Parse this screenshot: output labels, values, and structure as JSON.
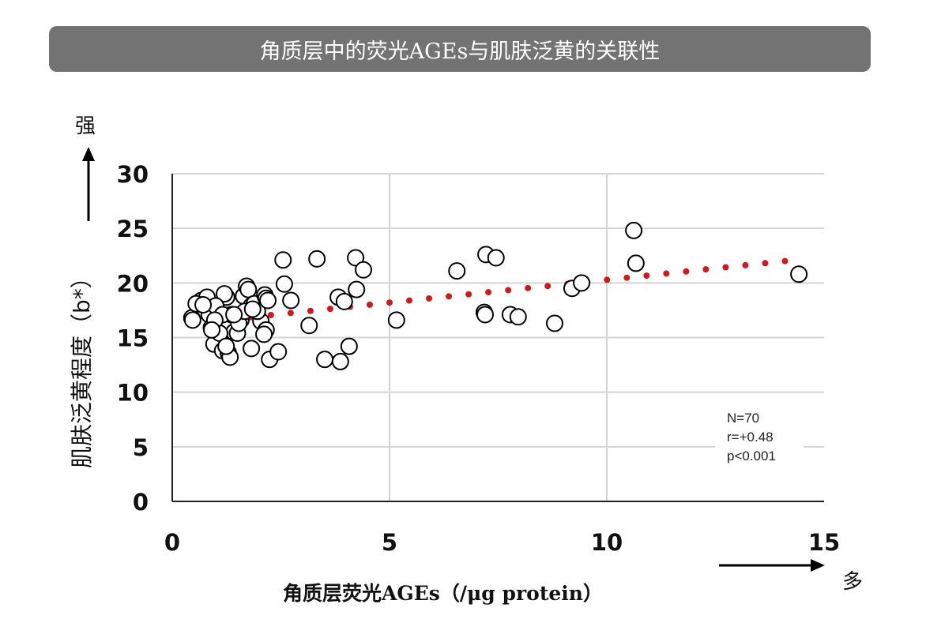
{
  "chart_data": {
    "type": "scatter",
    "title": "角质层中的荧光AGEs与肌肤泛黄的关联性",
    "xlabel": "角质层荧光AGEs（/μg protein）",
    "ylabel": "肌肤泛黄程度（b*）",
    "y_arrow_label": "强",
    "x_arrow_label": "多",
    "xlim": [
      0,
      15
    ],
    "ylim": [
      0,
      30
    ],
    "xticks": [
      "0",
      "5",
      "10",
      "15"
    ],
    "yticks": [
      "0",
      "5",
      "10",
      "15",
      "20",
      "25",
      "30"
    ],
    "grid": true,
    "stats": [
      "N=70",
      "r=+0.48",
      "p<0.001"
    ],
    "marker_color": "#000000",
    "trend_color": "#d0191b",
    "trendline": {
      "x": [
        0.45,
        14.1
      ],
      "y": [
        16.3,
        22.0
      ],
      "style": "dotted"
    },
    "points": [
      [
        0.45,
        16.8
      ],
      [
        0.47,
        16.6
      ],
      [
        0.67,
        18.4
      ],
      [
        0.8,
        18.7
      ],
      [
        0.85,
        17.1
      ],
      [
        0.9,
        15.9
      ],
      [
        0.96,
        14.4
      ],
      [
        1.16,
        13.8
      ],
      [
        1.25,
        18.7
      ],
      [
        1.2,
        19.0
      ],
      [
        1.29,
        13.6
      ],
      [
        1.33,
        13.2
      ],
      [
        1.36,
        17.1
      ],
      [
        1.42,
        15.5
      ],
      [
        1.58,
        16.6
      ],
      [
        1.64,
        18.8
      ],
      [
        1.71,
        19.7
      ],
      [
        1.75,
        19.4
      ],
      [
        1.82,
        17.9
      ],
      [
        1.82,
        14.0
      ],
      [
        1.89,
        18.1
      ],
      [
        2.04,
        16.5
      ],
      [
        2.13,
        18.9
      ],
      [
        2.16,
        18.6
      ],
      [
        2.16,
        15.7
      ],
      [
        2.11,
        15.3
      ],
      [
        2.24,
        13.0
      ],
      [
        2.44,
        13.7
      ],
      [
        2.55,
        22.1
      ],
      [
        2.58,
        19.9
      ],
      [
        2.73,
        18.4
      ],
      [
        3.15,
        16.1
      ],
      [
        3.33,
        22.2
      ],
      [
        3.51,
        13.0
      ],
      [
        3.82,
        18.7
      ],
      [
        3.87,
        12.8
      ],
      [
        3.96,
        18.3
      ],
      [
        4.07,
        14.2
      ],
      [
        4.22,
        22.3
      ],
      [
        4.24,
        19.4
      ],
      [
        4.4,
        21.2
      ],
      [
        5.16,
        16.6
      ],
      [
        6.55,
        21.1
      ],
      [
        7.22,
        22.6
      ],
      [
        7.18,
        17.3
      ],
      [
        7.2,
        17.1
      ],
      [
        7.45,
        22.3
      ],
      [
        7.78,
        17.1
      ],
      [
        7.96,
        16.9
      ],
      [
        8.8,
        16.3
      ],
      [
        9.2,
        19.5
      ],
      [
        9.42,
        20.0
      ],
      [
        10.62,
        24.8
      ],
      [
        10.67,
        21.8
      ],
      [
        14.42,
        20.8
      ],
      [
        0.55,
        18.1
      ],
      [
        1.0,
        17.9
      ],
      [
        1.09,
        15.4
      ],
      [
        1.5,
        15.4
      ],
      [
        1.53,
        16.3
      ],
      [
        1.16,
        17.1
      ],
      [
        1.67,
        17.4
      ],
      [
        1.96,
        17.4
      ],
      [
        0.98,
        16.6
      ],
      [
        1.24,
        14.2
      ],
      [
        1.42,
        17.1
      ],
      [
        1.85,
        17.6
      ],
      [
        0.91,
        15.7
      ],
      [
        0.71,
        18.0
      ],
      [
        2.2,
        18.4
      ]
    ]
  }
}
